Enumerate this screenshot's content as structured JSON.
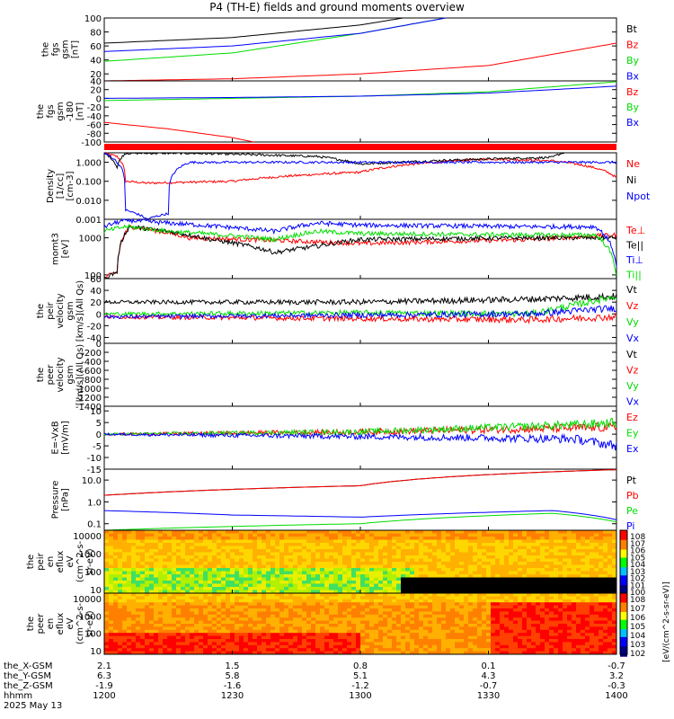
{
  "title": "P4 (TH-E) fields and ground moments overview",
  "colors": {
    "black": "#000000",
    "red": "#ff0000",
    "green": "#00dd00",
    "blue": "#0000ff"
  },
  "chart_data": [
    {
      "type": "line",
      "panel": "fgs-gsm",
      "ylabel": [
        "the",
        "fgs",
        "gsm",
        "[nT]"
      ],
      "yticks": [
        "100",
        "80",
        "60",
        "40",
        "20"
      ],
      "ylim": [
        10,
        100
      ],
      "x_hhmm": [
        1200,
        1400
      ],
      "series": [
        {
          "name": "Bt",
          "color": "#000000",
          "x": [
            1200,
            1230,
            1300,
            1310
          ],
          "y": [
            64,
            72,
            90,
            100
          ]
        },
        {
          "name": "Bz",
          "color": "#ff0000",
          "x": [
            1200,
            1230,
            1300,
            1330,
            1400
          ],
          "y": [
            10,
            13,
            20,
            32,
            64
          ]
        },
        {
          "name": "By",
          "color": "#00dd00",
          "x": [
            1200,
            1230,
            1300,
            1320
          ],
          "y": [
            38,
            50,
            78,
            100
          ]
        },
        {
          "name": "Bx",
          "color": "#0000ff",
          "x": [
            1200,
            1230,
            1300,
            1320
          ],
          "y": [
            52,
            60,
            78,
            100
          ]
        }
      ]
    },
    {
      "type": "line",
      "panel": "fgs-gsm-zoom",
      "ylabel": [
        "the",
        "fgs",
        "gsm",
        "-180",
        "[nT]"
      ],
      "yticks": [
        "40",
        "20",
        "0",
        "-20",
        "-40",
        "-60",
        "-80",
        "-100"
      ],
      "ylim": [
        -100,
        40
      ],
      "series": [
        {
          "name": "Bz",
          "color": "#ff0000",
          "x": [
            1200,
            1215,
            1230,
            1235
          ],
          "y": [
            -55,
            -70,
            -90,
            -100
          ]
        },
        {
          "name": "By",
          "color": "#00dd00",
          "x": [
            1200,
            1230,
            1300,
            1330,
            1400
          ],
          "y": [
            -5,
            0,
            5,
            15,
            38
          ]
        },
        {
          "name": "Bx",
          "color": "#0000ff",
          "x": [
            1200,
            1230,
            1300,
            1330,
            1400
          ],
          "y": [
            0,
            2,
            5,
            12,
            28
          ]
        }
      ]
    },
    {
      "type": "line",
      "panel": "density",
      "ylabel": [
        "Density",
        "[1/cc]",
        "[cm-3]"
      ],
      "yticks": [
        "1.000",
        "0.100",
        "0.010",
        "0.001"
      ],
      "ylim_log10": [
        -3,
        0.5
      ],
      "series": [
        {
          "name": "Ne",
          "color": "#ff0000",
          "x": [
            1200,
            1203,
            1205,
            1210,
            1230,
            1300,
            1330,
            1345,
            1400
          ],
          "y": [
            3,
            2,
            0.1,
            0.08,
            0.1,
            0.3,
            1.5,
            1.2,
            0.15
          ]
        },
        {
          "name": "Ni",
          "color": "#000000",
          "x": [
            1200,
            1203,
            1205,
            1220,
            1250,
            1300,
            1330,
            1345,
            1400
          ],
          "y": [
            3,
            0.5,
            3,
            3,
            2,
            0.8,
            1.5,
            1.8,
            10
          ]
        },
        {
          "name": "Npot",
          "color": "#0000ff",
          "x": [
            1200,
            1203,
            1205,
            1210,
            1215,
            1220,
            1300,
            1350,
            1400
          ],
          "y": [
            3,
            1,
            0.003,
            0.001,
            0.002,
            1,
            1,
            1,
            1
          ]
        }
      ]
    },
    {
      "type": "line",
      "panel": "moms-t3",
      "ylabel": [
        "momt3",
        "[eV]"
      ],
      "yticks": [
        "1000",
        "100"
      ],
      "ylim_log10": [
        1.9,
        3.5
      ],
      "series": [
        {
          "name": "Te⊥",
          "color": "#ff0000",
          "x": [
            1200,
            1203,
            1206,
            1220,
            1300,
            1340,
            1400
          ],
          "y": [
            80,
            120,
            2000,
            1000,
            700,
            900,
            1200
          ]
        },
        {
          "name": "Te||",
          "color": "#000000",
          "x": [
            1200,
            1203,
            1206,
            1225,
            1240,
            1250,
            1300,
            1340,
            1400
          ],
          "y": [
            80,
            120,
            2000,
            900,
            400,
            600,
            900,
            1000,
            1000
          ]
        },
        {
          "name": "Ti⊥",
          "color": "#0000ff",
          "x": [
            1200,
            1205,
            1215,
            1240,
            1250,
            1300,
            1340,
            1355,
            1400
          ],
          "y": [
            2000,
            3000,
            2500,
            1500,
            2500,
            2200,
            2000,
            2000,
            150
          ]
        },
        {
          "name": "Ti||",
          "color": "#00dd00",
          "x": [
            1200,
            1205,
            1215,
            1240,
            1250,
            1300,
            1340,
            1355,
            1400
          ],
          "y": [
            1500,
            2000,
            1500,
            900,
            1500,
            1300,
            1200,
            1200,
            80
          ]
        }
      ]
    },
    {
      "type": "line",
      "panel": "peir-velocity",
      "ylabel": [
        "the",
        "peir",
        "velocity",
        "gsm",
        "[km/s](All Qs)"
      ],
      "yticks": [
        "60",
        "40",
        "20",
        "0",
        "-20",
        "-40"
      ],
      "ylim": [
        -50,
        60
      ],
      "series": [
        {
          "name": "Vt",
          "color": "#000000",
          "x": [
            1200,
            1300,
            1340,
            1400
          ],
          "y": [
            20,
            20,
            25,
            30
          ]
        },
        {
          "name": "Vz",
          "color": "#ff0000",
          "x": [
            1200,
            1300,
            1340,
            1400
          ],
          "y": [
            -5,
            -8,
            -10,
            -5
          ]
        },
        {
          "name": "Vy",
          "color": "#00dd00",
          "x": [
            1200,
            1300,
            1340,
            1400
          ],
          "y": [
            0,
            2,
            0,
            30
          ]
        },
        {
          "name": "Vx",
          "color": "#0000ff",
          "x": [
            1200,
            1300,
            1340,
            1400
          ],
          "y": [
            -5,
            -2,
            0,
            10
          ]
        }
      ]
    },
    {
      "type": "line",
      "panel": "peer-velocity",
      "ylabel": [
        "the",
        "peer",
        "velocity",
        "gsm",
        "[km/s](All Qs)"
      ],
      "yticks": [
        "0",
        "-200",
        "-400",
        "-600",
        "-800",
        "-1000",
        "-1200",
        "-1400"
      ],
      "ylim": [
        -1400,
        0
      ],
      "series": [
        {
          "name": "Vt",
          "color": "#000000"
        },
        {
          "name": "Vz",
          "color": "#ff0000"
        },
        {
          "name": "Vy",
          "color": "#00dd00"
        },
        {
          "name": "Vx",
          "color": "#0000ff"
        }
      ]
    },
    {
      "type": "line",
      "panel": "efield",
      "ylabel": [
        "E=-VxB",
        "[mV/m]"
      ],
      "yticks": [
        "10",
        "5",
        "0",
        "-5",
        "-10",
        "-15"
      ],
      "ylim": [
        -15,
        12
      ],
      "series": [
        {
          "name": "Ez",
          "color": "#ff0000",
          "x": [
            1200,
            1300,
            1400
          ],
          "y": [
            0,
            1,
            3
          ]
        },
        {
          "name": "Ey",
          "color": "#00dd00",
          "x": [
            1200,
            1300,
            1350,
            1400
          ],
          "y": [
            0,
            1,
            4,
            5
          ]
        },
        {
          "name": "Ex",
          "color": "#0000ff",
          "x": [
            1200,
            1300,
            1350,
            1400
          ],
          "y": [
            0,
            -1,
            -2,
            -5
          ]
        }
      ]
    },
    {
      "type": "line",
      "panel": "pressure",
      "ylabel": [
        "Pressure",
        "[nPa]"
      ],
      "yticks": [
        "10.0",
        "1.0",
        "0.1"
      ],
      "ylim_log10": [
        -1.3,
        1.5
      ],
      "series": [
        {
          "name": "Pt",
          "color": "#000000",
          "x": [
            1200,
            1300,
            1400
          ],
          "y": [
            2,
            5.5,
            30
          ]
        },
        {
          "name": "Pb",
          "color": "#ff0000",
          "x": [
            1200,
            1300,
            1400
          ],
          "y": [
            2,
            5.5,
            30
          ]
        },
        {
          "name": "Pe",
          "color": "#00dd00",
          "x": [
            1200,
            1300,
            1345,
            1400
          ],
          "y": [
            0.05,
            0.1,
            0.3,
            0.12
          ]
        },
        {
          "name": "Pi",
          "color": "#0000ff",
          "x": [
            1200,
            1230,
            1300,
            1345,
            1400
          ],
          "y": [
            0.4,
            0.25,
            0.2,
            0.4,
            0.15
          ]
        }
      ]
    },
    {
      "type": "heatmap",
      "panel": "peir-en-eflux",
      "ylabel": [
        "the",
        "peir",
        "en",
        "eflux",
        "eV",
        "(cm^2-s-",
        "sr-eV)"
      ],
      "yticks": [
        "10000",
        "1000",
        "100",
        "10"
      ],
      "colorbar_ticks": [
        "10^8",
        "10^7",
        "10^6",
        "10^5",
        "10^4",
        "10^3",
        "10^2",
        "10^1",
        "10^0"
      ],
      "colorbar_label": "[eV/(cm^2-s-sr-eV)]"
    },
    {
      "type": "heatmap",
      "panel": "peer-en-eflux",
      "ylabel": [
        "the",
        "peer",
        "en",
        "eflux",
        "eV",
        "(cm^2-s-",
        "sr-eV)"
      ],
      "yticks": [
        "10000",
        "1000",
        "100",
        "10"
      ],
      "colorbar_ticks": [
        "10^8",
        "10^7",
        "10^6",
        "10^5",
        "10^4",
        "10^3",
        "10^2"
      ],
      "colorbar_label": "[eV/(cm^2-s-sr-eV)]"
    }
  ],
  "xaxis": {
    "rows": [
      {
        "label": "the_X-GSM",
        "values": [
          "2.1",
          "1.5",
          "0.8",
          "0.1",
          "-0.7"
        ]
      },
      {
        "label": "the_Y-GSM",
        "values": [
          "6.3",
          "5.8",
          "5.1",
          "4.3",
          "3.2"
        ]
      },
      {
        "label": "the_Z-GSM",
        "values": [
          "-1.9",
          "-1.6",
          "-1.2",
          "-0.7",
          "-0.3"
        ]
      },
      {
        "label": "hhmm",
        "values": [
          "1200",
          "1230",
          "1300",
          "1330",
          "1400"
        ]
      }
    ],
    "date": "2025 May 13"
  }
}
